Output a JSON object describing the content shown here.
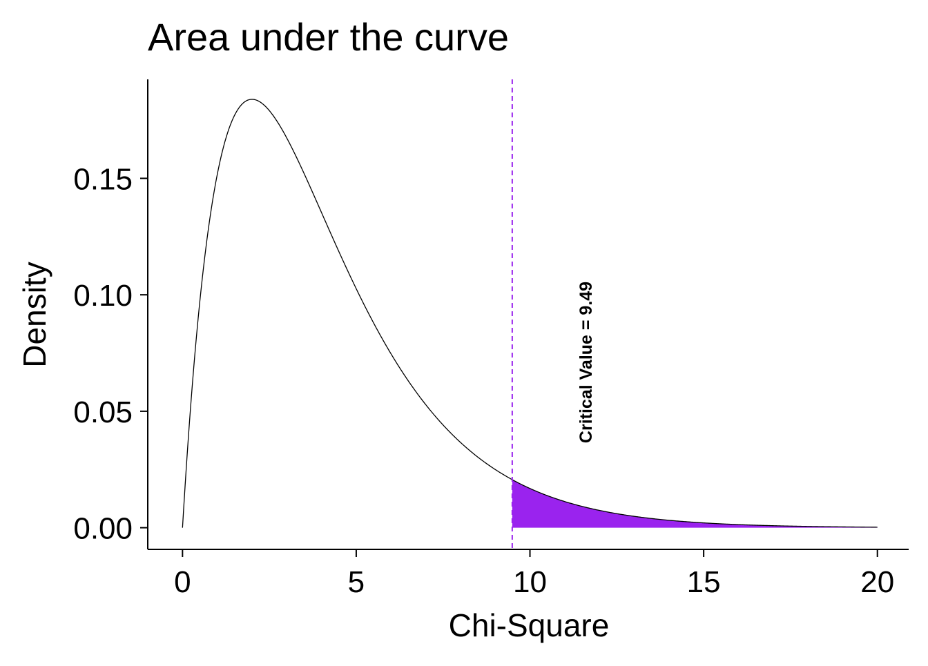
{
  "chart_data": {
    "type": "area",
    "title": "Area under the curve",
    "xlabel": "Chi-Square",
    "ylabel": "Density",
    "xlim": [
      -1,
      20.9
    ],
    "ylim": [
      -0.0093,
      0.1925
    ],
    "x_ticks": [
      0,
      5,
      10,
      15,
      20
    ],
    "x_tick_labels": [
      "0",
      "5",
      "10",
      "15",
      "20"
    ],
    "y_ticks": [
      0.0,
      0.05,
      0.1,
      0.15
    ],
    "y_tick_labels": [
      "0.00",
      "0.05",
      "0.10",
      "0.15"
    ],
    "grid": false,
    "legend": "none",
    "curve": {
      "distribution": "chi-square",
      "df": 4,
      "x_range": [
        0,
        20
      ],
      "color": "#000000"
    },
    "shaded_region": {
      "x_range": [
        9.49,
        20
      ],
      "color": "#9A23EE"
    },
    "critical_line": {
      "x": 9.49,
      "color": "#9A23EE",
      "style": "dashed"
    },
    "annotation": {
      "text": "Critical Value = 9.49",
      "x": 11.6,
      "y": 0.071
    }
  }
}
